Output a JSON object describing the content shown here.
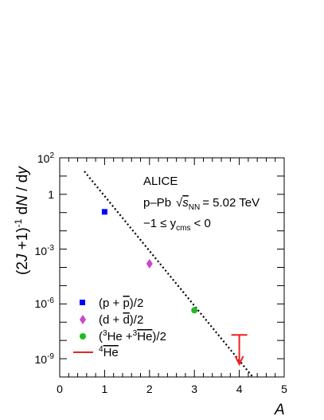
{
  "chart_data": {
    "type": "scatter",
    "title": "",
    "xlabel": "A",
    "ylabel": "(2J +1)⁻¹ dN / dy",
    "xlim": [
      0,
      5
    ],
    "ylim": [
      1e-10,
      100
    ],
    "yscale": "log",
    "grid": false,
    "x_ticks": [
      "0",
      "1",
      "2",
      "3",
      "4",
      "5"
    ],
    "y_tick_values": [
      1e-09,
      1e-06,
      0.001,
      1,
      100
    ],
    "annotations": {
      "experiment": "ALICE",
      "system": "p–Pb",
      "energy_value": "= 5.02 TeV",
      "rapidity": "−1 ≤ y",
      "rapidity_sub": "cms",
      "rapidity_tail": "< 0"
    },
    "series": [
      {
        "name": "(p + p̄)/2",
        "marker": "square",
        "color": "#0000ff",
        "x": [
          1
        ],
        "y": [
          0.11
        ]
      },
      {
        "name": "(d + d̄)/2",
        "marker": "diamond",
        "color": "#cc44cc",
        "x": [
          2
        ],
        "y": [
          0.00016
        ]
      },
      {
        "name": "(³He + ³Hē)/2",
        "marker": "circle",
        "color": "#22bb22",
        "x": [
          3
        ],
        "y": [
          4.5e-07
        ]
      },
      {
        "name": "⁴Hē",
        "marker": "upper-limit",
        "color": "#ee2222",
        "x": [
          4
        ],
        "y": [
          2e-08
        ],
        "y_limit_bottom": [
          5e-10
        ]
      }
    ],
    "fit_line": {
      "style": "dotted",
      "color": "#000000",
      "x": [
        0.55,
        4.3
      ],
      "y": [
        18,
        1e-10
      ]
    },
    "legend_position": "bottom-left"
  }
}
